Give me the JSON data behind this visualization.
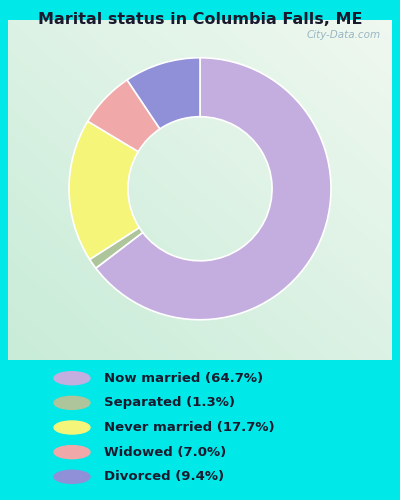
{
  "title": "Marital status in Columbia Falls, ME",
  "slices": [
    64.7,
    1.3,
    17.7,
    7.0,
    9.4
  ],
  "labels": [
    "Now married (64.7%)",
    "Separated (1.3%)",
    "Never married (17.7%)",
    "Widowed (7.0%)",
    "Divorced (9.4%)"
  ],
  "colors": [
    "#c4aee0",
    "#aec49a",
    "#f5f57a",
    "#f0a8a8",
    "#9090d8"
  ],
  "bg_color": "#00e8e8",
  "chart_bg_tl": "#f0f8f0",
  "chart_bg_tr": "#e8f4f8",
  "chart_bg_bl": "#c8ecd8",
  "title_color": "#1a1a2e",
  "legend_text_color": "#1a1a2e",
  "donut_width": 0.45,
  "start_angle": 90,
  "watermark": "City-Data.com"
}
